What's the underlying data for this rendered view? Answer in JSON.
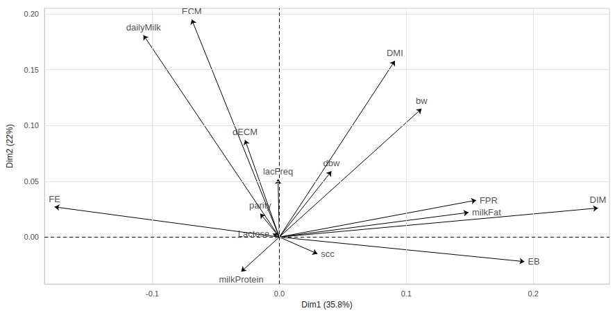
{
  "chart_data": {
    "type": "biplot",
    "xlabel": "Dim1 (35.8%)",
    "ylabel": "Dim2 (22%)",
    "origin": [
      0,
      0
    ],
    "color": "#000000",
    "grid": true,
    "xlim": [
      -0.185,
      0.26
    ],
    "ylim": [
      -0.042,
      0.205
    ],
    "xticks": [
      -0.1,
      {
        "value": 0,
        "label": "0.0"
      },
      0.1,
      0.2
    ],
    "yticks": [
      {
        "value": 0,
        "label": "0.00"
      },
      {
        "value": 0.05,
        "label": "0.05"
      },
      {
        "value": 0.1,
        "label": "0.10"
      },
      {
        "value": 0.15,
        "label": "0.15"
      },
      {
        "value": 0.2,
        "label": "0.20"
      }
    ],
    "variables": [
      {
        "name": "dailyMilk",
        "x": -0.107,
        "y": 0.181
      },
      {
        "name": "ECM",
        "x": -0.069,
        "y": 0.195
      },
      {
        "name": "DMI",
        "x": 0.091,
        "y": 0.158
      },
      {
        "name": "bw",
        "x": 0.112,
        "y": 0.115
      },
      {
        "name": "dbw",
        "x": 0.041,
        "y": 0.059
      },
      {
        "name": "dECM",
        "x": -0.027,
        "y": 0.087
      },
      {
        "name": "lacFreq",
        "x": -0.001,
        "y": 0.052
      },
      {
        "name": "parity",
        "x": -0.015,
        "y": 0.021
      },
      {
        "name": "Lactose",
        "x": -0.005,
        "y": 0.003
      },
      {
        "name": "FE",
        "x": -0.177,
        "y": 0.027
      },
      {
        "name": "FPR",
        "x": 0.155,
        "y": 0.033
      },
      {
        "name": "milkFat",
        "x": 0.149,
        "y": 0.022
      },
      {
        "name": "DIM",
        "x": 0.251,
        "y": 0.026
      },
      {
        "name": "EB",
        "x": 0.193,
        "y": -0.022
      },
      {
        "name": "scc",
        "x": 0.03,
        "y": -0.015
      },
      {
        "name": "milkProtein",
        "x": -0.03,
        "y": -0.031
      }
    ]
  }
}
